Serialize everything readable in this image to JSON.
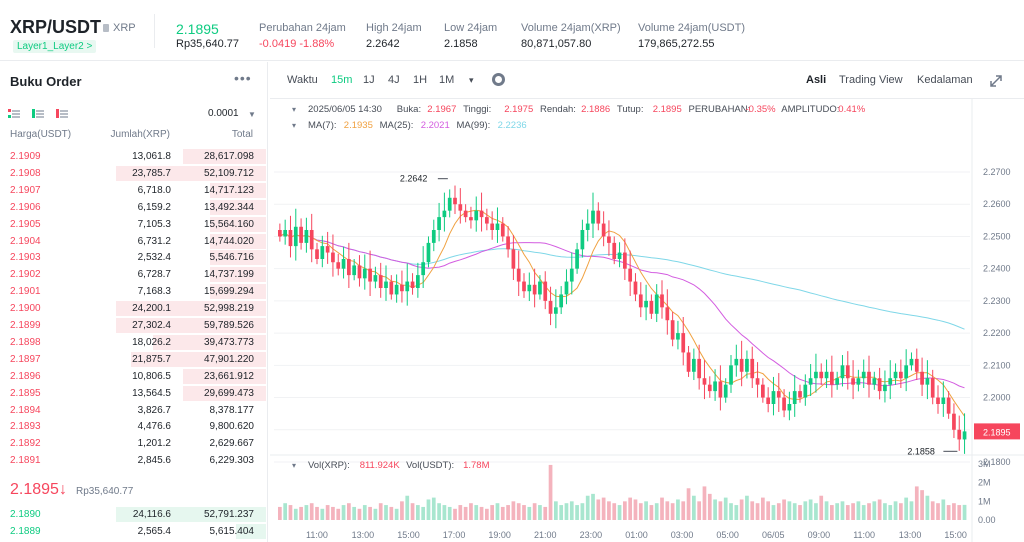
{
  "header": {
    "pair": "XRP/USDT",
    "pair_sub": "XRP",
    "tag": "Layer1_Layer2 >",
    "last_price": "2.1895",
    "last_idr": "Rp35,640.77",
    "stats": [
      {
        "label": "Perubahan 24jam",
        "value": "-0.0419 -1.88%",
        "neg": true
      },
      {
        "label": "High 24jam",
        "value": "2.2642"
      },
      {
        "label": "Low 24jam",
        "value": "2.1858"
      },
      {
        "label": "Volume 24jam(XRP)",
        "value": "80,871,057.80"
      },
      {
        "label": "Volume 24jam(USDT)",
        "value": "179,865,272.55"
      }
    ]
  },
  "orderbook": {
    "title": "Buku Order",
    "more": "•••",
    "tick": "0.0001",
    "headers": {
      "price": "Harga(USDT)",
      "amount": "Jumlah(XRP)",
      "total": "Total"
    },
    "asks": [
      {
        "price": "2.1909",
        "amount": "13,061.8",
        "total": "28,617.098",
        "depth": 0.55
      },
      {
        "price": "2.1908",
        "amount": "23,785.7",
        "total": "52,109.712",
        "depth": 1.0
      },
      {
        "price": "2.1907",
        "amount": "6,718.0",
        "total": "14,717.123",
        "depth": 0.37
      },
      {
        "price": "2.1906",
        "amount": "6,159.2",
        "total": "13,492.344",
        "depth": 0.37
      },
      {
        "price": "2.1905",
        "amount": "7,105.3",
        "total": "15,564.160",
        "depth": 0.37
      },
      {
        "price": "2.1904",
        "amount": "6,731.2",
        "total": "14,744.020",
        "depth": 0.37
      },
      {
        "price": "2.1903",
        "amount": "2,532.4",
        "total": "5,546.716",
        "depth": 0.37
      },
      {
        "price": "2.1902",
        "amount": "6,728.7",
        "total": "14,737.199",
        "depth": 0.37
      },
      {
        "price": "2.1901",
        "amount": "7,168.3",
        "total": "15,699.294",
        "depth": 0.37
      },
      {
        "price": "2.1900",
        "amount": "24,200.1",
        "total": "52,998.219",
        "depth": 1.0
      },
      {
        "price": "2.1899",
        "amount": "27,302.4",
        "total": "59,789.526",
        "depth": 1.0
      },
      {
        "price": "2.1898",
        "amount": "18,026.2",
        "total": "39,473.773",
        "depth": 0.75
      },
      {
        "price": "2.1897",
        "amount": "21,875.7",
        "total": "47,901.220",
        "depth": 0.9
      },
      {
        "price": "2.1896",
        "amount": "10,806.5",
        "total": "23,661.912",
        "depth": 0.55
      },
      {
        "price": "2.1895",
        "amount": "13,564.5",
        "total": "29,699.473",
        "depth": 0.55
      },
      {
        "price": "2.1894",
        "amount": "3,826.7",
        "total": "8,378.177",
        "depth": 0.0
      },
      {
        "price": "2.1893",
        "amount": "4,476.6",
        "total": "9,800.620",
        "depth": 0.0
      },
      {
        "price": "2.1892",
        "amount": "1,201.2",
        "total": "2,629.667",
        "depth": 0.0
      },
      {
        "price": "2.1891",
        "amount": "2,845.6",
        "total": "6,229.303",
        "depth": 0.0
      }
    ],
    "mid_price": "2.1895↓",
    "mid_idr": "Rp35,640.77",
    "bids": [
      {
        "price": "2.1890",
        "amount": "24,116.6",
        "total": "52,791.237",
        "depth": 1.0
      },
      {
        "price": "2.1889",
        "amount": "2,565.4",
        "total": "5,615.404",
        "depth": 0.2
      }
    ]
  },
  "toolbar": {
    "items": [
      {
        "label": "Waktu",
        "active": false
      },
      {
        "label": "15m",
        "active": true
      },
      {
        "label": "1J",
        "active": false
      },
      {
        "label": "4J",
        "active": false
      },
      {
        "label": "1H",
        "active": false
      },
      {
        "label": "1M",
        "active": false
      }
    ],
    "caret": "▾",
    "views": [
      {
        "label": "Asli",
        "active": true
      },
      {
        "label": "Trading View",
        "active": false
      },
      {
        "label": "Kedalaman",
        "active": false
      }
    ]
  },
  "chart_info": {
    "line1": [
      {
        "text": "2025/06/05 14:30",
        "color": "#474d57"
      },
      {
        "text": "Buka:",
        "color": "#474d57"
      },
      {
        "text": "2.1967",
        "color": "#f6465d"
      },
      {
        "text": "Tinggi:",
        "color": "#474d57"
      },
      {
        "text": "2.1975",
        "color": "#f6465d"
      },
      {
        "text": "Rendah:",
        "color": "#474d57"
      },
      {
        "text": "2.1886",
        "color": "#f6465d"
      },
      {
        "text": "Tutup:",
        "color": "#474d57"
      },
      {
        "text": "2.1895",
        "color": "#f6465d"
      },
      {
        "text": "PERUBAHAN:",
        "color": "#474d57"
      },
      {
        "text": "-0.35%",
        "color": "#f6465d"
      },
      {
        "text": "AMPLITUDO:",
        "color": "#474d57"
      },
      {
        "text": "0.41%",
        "color": "#f6465d"
      }
    ],
    "line2": [
      {
        "text": "MA(7):",
        "color": "#474d57"
      },
      {
        "text": "2.1935",
        "color": "#f0a140"
      },
      {
        "text": "MA(25):",
        "color": "#474d57"
      },
      {
        "text": "2.2021",
        "color": "#d35ce0"
      },
      {
        "text": "MA(99):",
        "color": "#474d57"
      },
      {
        "text": "2.2236",
        "color": "#7fd7e8"
      }
    ],
    "vol_line": [
      {
        "text": "Vol(XRP):",
        "color": "#474d57"
      },
      {
        "text": "811.924K",
        "color": "#f6465d"
      },
      {
        "text": "Vol(USDT):",
        "color": "#474d57"
      },
      {
        "text": "1.78M",
        "color": "#f6465d"
      }
    ]
  },
  "chart_data": {
    "type": "candlestick",
    "interval": "15m",
    "price_axis": {
      "range": [
        2.18,
        2.27
      ],
      "ticks": [
        "2.2700",
        "2.2600",
        "2.2500",
        "2.2400",
        "2.2300",
        "2.2200",
        "2.2100",
        "2.2000",
        "2.1900",
        "2.1800"
      ]
    },
    "volume_axis": {
      "ticks": [
        "3M",
        "2M",
        "1M",
        "0.00"
      ]
    },
    "x_ticks": [
      "11:00",
      "13:00",
      "15:00",
      "17:00",
      "19:00",
      "21:00",
      "23:00",
      "01:00",
      "03:00",
      "05:00",
      "06/05",
      "09:00",
      "11:00",
      "13:00",
      "15:00"
    ],
    "high_label": "2.2642",
    "low_label": "2.1858",
    "current_price": "2.1895",
    "up_color": "#0ecb81",
    "down_color": "#f6465d",
    "ma_colors": {
      "ma7": "#f0a140",
      "ma25": "#d35ce0",
      "ma99": "#7fd7e8"
    },
    "close_path": [
      2.25,
      2.252,
      2.247,
      2.253,
      2.248,
      2.252,
      2.246,
      2.243,
      2.247,
      2.245,
      2.242,
      2.24,
      2.243,
      2.238,
      2.241,
      2.237,
      2.24,
      2.236,
      2.238,
      2.234,
      2.236,
      2.232,
      2.235,
      2.233,
      2.236,
      2.234,
      2.238,
      2.242,
      2.248,
      2.252,
      2.256,
      2.258,
      2.262,
      2.26,
      2.258,
      2.256,
      2.255,
      2.258,
      2.256,
      2.254,
      2.252,
      2.254,
      2.25,
      2.246,
      2.24,
      2.236,
      2.233,
      2.235,
      2.232,
      2.236,
      2.23,
      2.226,
      2.228,
      2.232,
      2.236,
      2.24,
      2.246,
      2.252,
      2.254,
      2.258,
      2.254,
      2.25,
      2.248,
      2.243,
      2.245,
      2.24,
      2.236,
      2.232,
      2.228,
      2.23,
      2.226,
      2.232,
      2.228,
      2.224,
      2.218,
      2.22,
      2.214,
      2.208,
      2.212,
      2.206,
      2.204,
      2.202,
      2.205,
      2.2,
      2.204,
      2.21,
      2.212,
      2.208,
      2.212,
      2.206,
      2.204,
      2.2,
      2.198,
      2.202,
      2.2,
      2.196,
      2.198,
      2.202,
      2.2,
      2.204,
      2.206,
      2.208,
      2.206,
      2.208,
      2.204,
      2.206,
      2.21,
      2.206,
      2.204,
      2.206,
      2.208,
      2.204,
      2.206,
      2.202,
      2.204,
      2.206,
      2.208,
      2.206,
      2.21,
      2.212,
      2.208,
      2.204,
      2.206,
      2.2,
      2.198,
      2.2,
      2.195,
      2.19,
      2.187,
      2.1895
    ],
    "volume_path": [
      0.7,
      0.9,
      0.8,
      0.6,
      0.7,
      0.8,
      0.9,
      0.7,
      0.6,
      0.8,
      0.7,
      0.6,
      0.8,
      0.9,
      0.7,
      0.6,
      0.8,
      0.7,
      0.6,
      0.9,
      0.8,
      0.7,
      0.6,
      1.0,
      1.3,
      0.9,
      0.8,
      0.7,
      1.1,
      1.2,
      0.9,
      0.8,
      0.7,
      0.6,
      0.8,
      0.7,
      0.9,
      0.8,
      0.7,
      0.6,
      0.8,
      0.9,
      0.7,
      0.8,
      1.0,
      0.9,
      0.8,
      0.7,
      0.9,
      0.8,
      0.7,
      2.95,
      1.0,
      0.8,
      0.9,
      1.0,
      0.8,
      0.9,
      1.3,
      1.4,
      1.1,
      1.2,
      1.0,
      0.9,
      0.8,
      1.0,
      1.2,
      1.1,
      0.9,
      1.0,
      0.8,
      0.9,
      1.2,
      1.0,
      0.9,
      1.1,
      1.0,
      1.7,
      1.3,
      1.0,
      1.8,
      1.4,
      1.1,
      1.0,
      1.2,
      0.9,
      0.8,
      1.1,
      1.3,
      1.0,
      0.9,
      1.2,
      1.0,
      0.8,
      0.9,
      1.1,
      1.0,
      0.9,
      0.8,
      1.0,
      1.1,
      0.9,
      1.3,
      1.0,
      0.8,
      0.9,
      1.0,
      0.8,
      0.9,
      1.0,
      0.8,
      0.9,
      1.0,
      1.1,
      0.9,
      0.8,
      1.0,
      0.9,
      1.2,
      1.0,
      1.8,
      1.6,
      1.3,
      1.0,
      0.9,
      1.1,
      0.8,
      0.9,
      0.8,
      0.81
    ]
  }
}
